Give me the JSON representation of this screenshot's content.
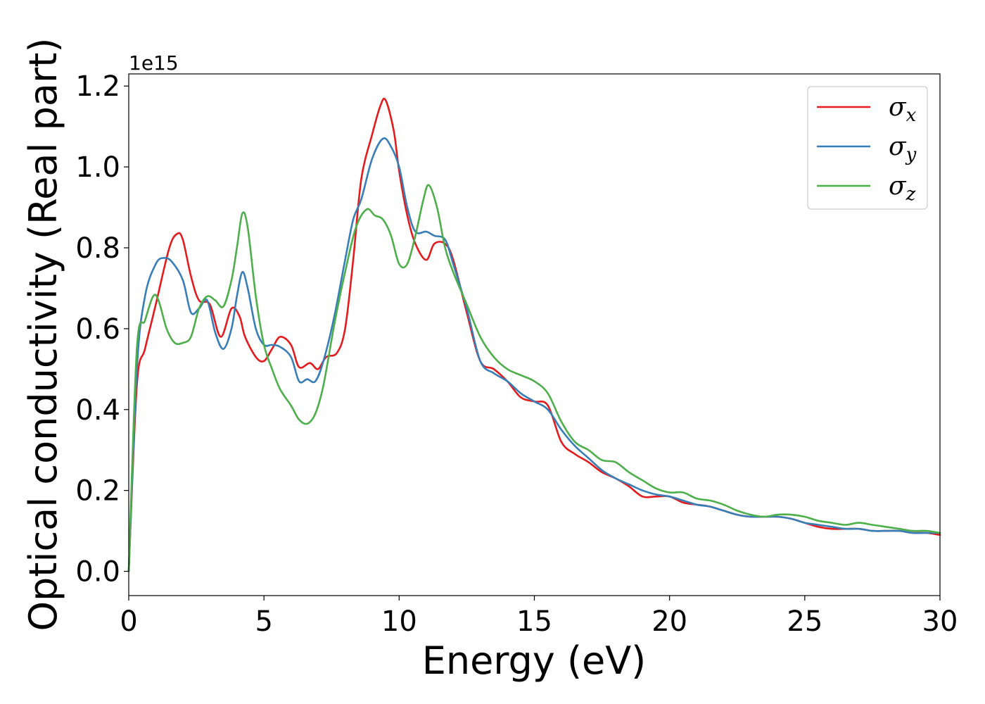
{
  "chart_data": {
    "type": "line",
    "xlabel": "Energy (eV)",
    "ylabel": "Optical conductivity (Real part)",
    "y_offset_text": "1e15",
    "y_scale_multiplier": 1000000000000000.0,
    "xlim": [
      0,
      30
    ],
    "ylim": [
      -0.06,
      1.23
    ],
    "x_ticks": [
      0,
      5,
      10,
      15,
      20,
      25,
      30
    ],
    "x_tick_labels": [
      "0",
      "5",
      "10",
      "15",
      "20",
      "25",
      "30"
    ],
    "y_ticks": [
      0.0,
      0.2,
      0.4,
      0.6,
      0.8,
      1.0,
      1.2
    ],
    "y_tick_labels": [
      "0.0",
      "0.2",
      "0.4",
      "0.6",
      "0.8",
      "1.0",
      "1.2"
    ],
    "grid": false,
    "legend_position": "top-right",
    "series": [
      {
        "name": "σx",
        "legend_base": "σ",
        "legend_sub": "x",
        "color": "#e41a1c",
        "x": [
          0,
          0.3,
          0.6,
          1.0,
          1.5,
          1.8,
          2.0,
          2.3,
          2.6,
          3.0,
          3.4,
          3.8,
          4.1,
          4.3,
          4.7,
          5.0,
          5.3,
          5.6,
          6.0,
          6.3,
          6.7,
          7.0,
          7.3,
          7.7,
          8.0,
          8.3,
          8.6,
          9.0,
          9.3,
          9.5,
          9.8,
          10.0,
          10.3,
          10.6,
          11.0,
          11.3,
          11.7,
          12.0,
          12.5,
          13.0,
          13.5,
          14.0,
          14.5,
          15.0,
          15.5,
          16.0,
          16.5,
          17.0,
          17.5,
          18.0,
          18.5,
          19.0,
          19.5,
          20.0,
          20.5,
          21.0,
          21.5,
          22.0,
          22.5,
          23.0,
          23.5,
          24.0,
          24.5,
          25.0,
          25.5,
          26.0,
          26.5,
          27.0,
          27.5,
          28.0,
          28.5,
          29.0,
          29.5,
          30.0
        ],
        "y": [
          0.0,
          0.46,
          0.55,
          0.66,
          0.8,
          0.835,
          0.82,
          0.73,
          0.67,
          0.66,
          0.58,
          0.65,
          0.63,
          0.58,
          0.53,
          0.52,
          0.55,
          0.58,
          0.56,
          0.505,
          0.515,
          0.5,
          0.53,
          0.54,
          0.6,
          0.77,
          0.97,
          1.08,
          1.15,
          1.165,
          1.09,
          0.99,
          0.88,
          0.81,
          0.77,
          0.81,
          0.81,
          0.77,
          0.64,
          0.52,
          0.5,
          0.47,
          0.43,
          0.42,
          0.41,
          0.32,
          0.29,
          0.27,
          0.245,
          0.23,
          0.21,
          0.185,
          0.185,
          0.185,
          0.17,
          0.165,
          0.16,
          0.15,
          0.14,
          0.135,
          0.135,
          0.135,
          0.13,
          0.12,
          0.11,
          0.105,
          0.105,
          0.105,
          0.1,
          0.1,
          0.1,
          0.095,
          0.095,
          0.09
        ]
      },
      {
        "name": "σy",
        "legend_base": "σ",
        "legend_sub": "y",
        "color": "#377eb8",
        "x": [
          0,
          0.3,
          0.6,
          1.0,
          1.3,
          1.6,
          2.0,
          2.3,
          2.6,
          2.9,
          3.2,
          3.5,
          3.8,
          4.0,
          4.2,
          4.4,
          4.7,
          5.0,
          5.3,
          5.6,
          6.0,
          6.3,
          6.6,
          6.9,
          7.2,
          7.6,
          8.0,
          8.3,
          8.6,
          9.0,
          9.4,
          9.7,
          10.0,
          10.3,
          10.6,
          11.0,
          11.3,
          11.7,
          12.0,
          12.5,
          13.0,
          13.5,
          14.0,
          14.5,
          15.0,
          15.5,
          16.0,
          16.5,
          17.0,
          17.5,
          18.0,
          18.5,
          19.0,
          19.5,
          20.0,
          20.5,
          21.0,
          21.5,
          22.0,
          22.5,
          23.0,
          23.5,
          24.0,
          24.5,
          25.0,
          25.5,
          26.0,
          26.5,
          27.0,
          27.5,
          28.0,
          28.5,
          29.0,
          29.5,
          30.0
        ],
        "y": [
          0.0,
          0.5,
          0.68,
          0.76,
          0.775,
          0.765,
          0.72,
          0.64,
          0.65,
          0.67,
          0.59,
          0.55,
          0.6,
          0.68,
          0.74,
          0.7,
          0.6,
          0.56,
          0.56,
          0.555,
          0.53,
          0.47,
          0.475,
          0.47,
          0.52,
          0.63,
          0.77,
          0.87,
          0.92,
          1.02,
          1.07,
          1.05,
          1.0,
          0.9,
          0.84,
          0.84,
          0.83,
          0.82,
          0.76,
          0.65,
          0.52,
          0.49,
          0.47,
          0.44,
          0.42,
          0.4,
          0.35,
          0.31,
          0.28,
          0.25,
          0.23,
          0.215,
          0.2,
          0.19,
          0.185,
          0.175,
          0.165,
          0.16,
          0.15,
          0.14,
          0.135,
          0.135,
          0.135,
          0.13,
          0.12,
          0.115,
          0.11,
          0.105,
          0.105,
          0.1,
          0.1,
          0.1,
          0.095,
          0.095,
          0.095
        ]
      },
      {
        "name": "σz",
        "legend_base": "σ",
        "legend_sub": "z",
        "color": "#4daf4a",
        "x": [
          0,
          0.3,
          0.6,
          0.9,
          1.1,
          1.4,
          1.7,
          2.0,
          2.3,
          2.6,
          2.9,
          3.2,
          3.5,
          3.8,
          4.0,
          4.2,
          4.4,
          4.7,
          5.0,
          5.3,
          5.6,
          6.0,
          6.3,
          6.6,
          6.9,
          7.2,
          7.6,
          8.0,
          8.4,
          8.8,
          9.1,
          9.4,
          9.7,
          10.0,
          10.3,
          10.6,
          10.9,
          11.1,
          11.4,
          11.7,
          12.0,
          12.5,
          13.0,
          13.5,
          14.0,
          14.5,
          15.0,
          15.5,
          16.0,
          16.5,
          17.0,
          17.5,
          18.0,
          18.5,
          19.0,
          19.5,
          20.0,
          20.5,
          21.0,
          21.5,
          22.0,
          22.5,
          23.0,
          23.5,
          24.0,
          24.5,
          25.0,
          25.5,
          26.0,
          26.5,
          27.0,
          27.5,
          28.0,
          28.5,
          29.0,
          29.5,
          30.0
        ],
        "y": [
          0.0,
          0.55,
          0.62,
          0.68,
          0.67,
          0.6,
          0.565,
          0.565,
          0.58,
          0.65,
          0.68,
          0.67,
          0.655,
          0.72,
          0.8,
          0.885,
          0.85,
          0.68,
          0.56,
          0.5,
          0.45,
          0.41,
          0.375,
          0.365,
          0.39,
          0.46,
          0.61,
          0.74,
          0.85,
          0.895,
          0.88,
          0.87,
          0.83,
          0.76,
          0.76,
          0.83,
          0.92,
          0.955,
          0.9,
          0.8,
          0.74,
          0.66,
          0.58,
          0.53,
          0.5,
          0.485,
          0.47,
          0.44,
          0.37,
          0.32,
          0.3,
          0.275,
          0.27,
          0.245,
          0.225,
          0.205,
          0.195,
          0.195,
          0.18,
          0.175,
          0.165,
          0.15,
          0.14,
          0.135,
          0.14,
          0.14,
          0.135,
          0.125,
          0.12,
          0.115,
          0.12,
          0.115,
          0.11,
          0.105,
          0.1,
          0.1,
          0.095
        ]
      }
    ]
  }
}
